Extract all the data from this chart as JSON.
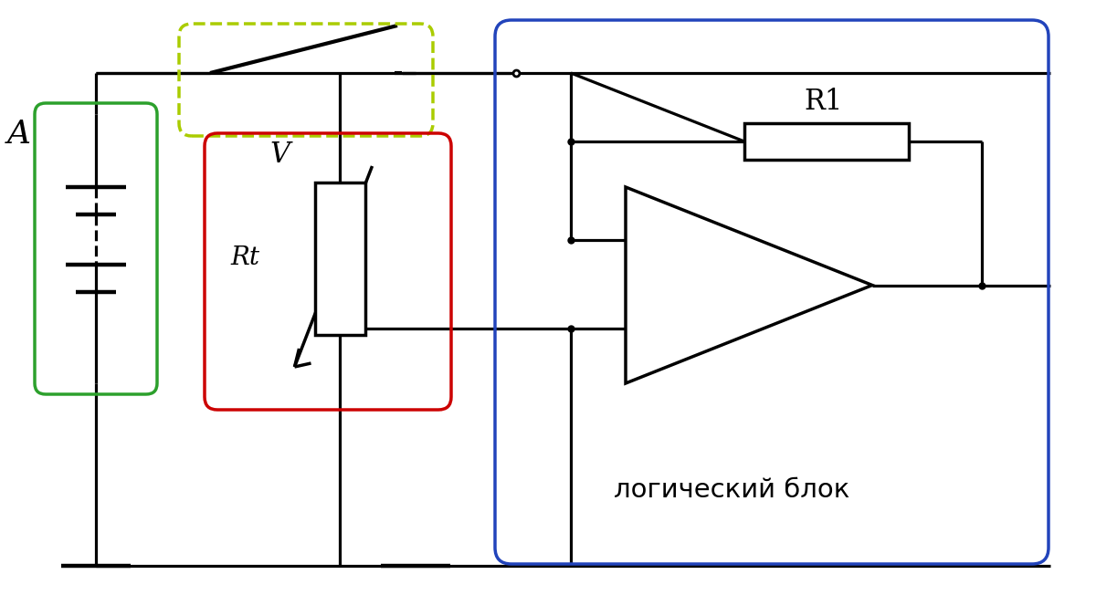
{
  "bg_color": "#ffffff",
  "black": "#000000",
  "green": "#2ca02c",
  "red": "#cc0000",
  "blue": "#2244bb",
  "yg": "#aacc00",
  "label_A": "A",
  "label_V": "V",
  "label_R1": "R1",
  "label_Rt": "Rt",
  "label_logic": "логический блок",
  "figsize": [
    12.0,
    6.75
  ],
  "dpi": 100
}
